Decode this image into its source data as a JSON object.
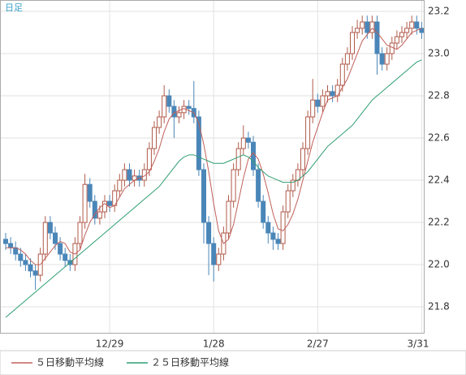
{
  "chart_data": {
    "type": "candlestick",
    "period_label": "日足",
    "categories": [
      null,
      null,
      null,
      null,
      null,
      null,
      null,
      null,
      null,
      null,
      null,
      null,
      null,
      null,
      null,
      null,
      null,
      null,
      null,
      null,
      null,
      "12/29",
      null,
      null,
      null,
      null,
      null,
      null,
      null,
      null,
      null,
      null,
      null,
      null,
      null,
      null,
      null,
      null,
      null,
      null,
      null,
      null,
      "1/28",
      null,
      null,
      null,
      null,
      null,
      null,
      null,
      null,
      null,
      null,
      null,
      null,
      null,
      null,
      null,
      null,
      null,
      null,
      null,
      null,
      "2/27",
      null,
      null,
      null,
      null,
      null,
      null,
      null,
      null,
      null,
      null,
      null,
      null,
      null,
      null,
      null,
      null,
      null,
      null,
      null,
      null,
      "3/31"
    ],
    "ohlc": {
      "up_color": "#b05a4a",
      "down_color": "#4a86b8",
      "open": [
        22.12,
        22.1,
        22.08,
        22.05,
        22.02,
        22.0,
        21.97,
        21.95,
        22.05,
        22.2,
        22.15,
        22.1,
        22.05,
        22.02,
        22.0,
        22.1,
        22.2,
        22.38,
        22.3,
        22.22,
        22.25,
        22.3,
        22.28,
        22.35,
        22.4,
        22.45,
        22.4,
        22.42,
        22.4,
        22.45,
        22.55,
        22.65,
        22.7,
        22.8,
        22.75,
        22.7,
        22.72,
        22.75,
        22.74,
        22.7,
        22.45,
        22.2,
        22.1,
        22.0,
        22.05,
        22.15,
        22.3,
        22.45,
        22.55,
        22.6,
        22.58,
        22.45,
        22.3,
        22.2,
        22.15,
        22.12,
        22.1,
        22.25,
        22.35,
        22.4,
        22.45,
        22.55,
        22.7,
        22.78,
        22.75,
        22.8,
        22.82,
        22.8,
        22.85,
        22.95,
        23.0,
        23.1,
        23.12,
        23.15,
        23.1,
        23.15,
        23.0,
        22.95,
        23.0,
        23.05,
        23.08,
        23.1,
        23.12,
        23.15,
        23.12
      ],
      "high": [
        22.15,
        22.13,
        22.11,
        22.08,
        22.05,
        22.03,
        22.0,
        22.08,
        22.23,
        22.23,
        22.18,
        22.13,
        22.08,
        22.05,
        22.13,
        22.23,
        22.43,
        22.41,
        22.33,
        22.28,
        22.33,
        22.33,
        22.38,
        22.43,
        22.48,
        22.48,
        22.45,
        22.45,
        22.48,
        22.58,
        22.68,
        22.73,
        22.85,
        22.83,
        22.78,
        22.75,
        22.78,
        22.78,
        22.87,
        22.73,
        22.48,
        22.23,
        22.13,
        22.08,
        22.18,
        22.33,
        22.48,
        22.58,
        22.66,
        22.63,
        22.61,
        22.48,
        22.33,
        22.23,
        22.18,
        22.15,
        22.28,
        22.38,
        22.43,
        22.48,
        22.58,
        22.73,
        22.88,
        22.81,
        22.83,
        22.85,
        22.85,
        22.88,
        22.98,
        23.03,
        23.13,
        23.16,
        23.18,
        23.18,
        23.18,
        23.18,
        23.03,
        23.03,
        23.08,
        23.11,
        23.13,
        23.15,
        23.18,
        23.18,
        23.15
      ],
      "low": [
        22.07,
        22.05,
        22.02,
        21.99,
        21.97,
        21.94,
        21.88,
        21.92,
        22.02,
        22.12,
        22.07,
        22.02,
        21.99,
        21.97,
        21.97,
        22.07,
        22.17,
        22.27,
        22.19,
        22.19,
        22.22,
        22.25,
        22.25,
        22.32,
        22.37,
        22.37,
        22.37,
        22.37,
        22.37,
        22.42,
        22.52,
        22.62,
        22.67,
        22.72,
        22.6,
        22.67,
        22.69,
        22.71,
        22.67,
        22.42,
        22.1,
        21.95,
        21.92,
        21.97,
        22.02,
        22.12,
        22.27,
        22.42,
        22.52,
        22.55,
        22.42,
        22.27,
        22.17,
        22.1,
        22.07,
        22.07,
        22.07,
        22.22,
        22.32,
        22.37,
        22.42,
        22.52,
        22.67,
        22.72,
        22.72,
        22.77,
        22.77,
        22.77,
        22.82,
        22.92,
        22.97,
        23.07,
        23.09,
        23.07,
        23.07,
        22.9,
        22.92,
        22.92,
        22.97,
        23.02,
        23.05,
        23.07,
        23.09,
        23.09,
        23.07
      ],
      "close": [
        22.1,
        22.08,
        22.05,
        22.02,
        22.0,
        21.97,
        21.95,
        22.05,
        22.2,
        22.15,
        22.1,
        22.05,
        22.02,
        22.0,
        22.1,
        22.2,
        22.38,
        22.3,
        22.22,
        22.25,
        22.3,
        22.28,
        22.35,
        22.4,
        22.45,
        22.4,
        22.42,
        22.4,
        22.45,
        22.55,
        22.65,
        22.7,
        22.8,
        22.75,
        22.7,
        22.72,
        22.75,
        22.74,
        22.7,
        22.45,
        22.2,
        22.1,
        22.0,
        22.05,
        22.15,
        22.3,
        22.45,
        22.55,
        22.6,
        22.58,
        22.45,
        22.3,
        22.2,
        22.15,
        22.12,
        22.1,
        22.25,
        22.35,
        22.4,
        22.45,
        22.55,
        22.7,
        22.78,
        22.75,
        22.8,
        22.82,
        22.8,
        22.85,
        22.95,
        23.0,
        23.1,
        23.12,
        23.15,
        23.1,
        23.15,
        23.0,
        22.95,
        23.0,
        23.05,
        23.08,
        23.1,
        23.12,
        23.15,
        23.12,
        23.1
      ]
    },
    "series": [
      {
        "name": "５日移動平均線",
        "color": "#c0605a",
        "values": [
          22.08,
          22.08,
          22.08,
          22.07,
          22.05,
          22.02,
          22.0,
          22.0,
          22.03,
          22.06,
          22.09,
          22.11,
          22.1,
          22.06,
          22.05,
          22.07,
          22.14,
          22.2,
          22.24,
          22.27,
          22.29,
          22.27,
          22.28,
          22.32,
          22.36,
          22.38,
          22.4,
          22.41,
          22.42,
          22.44,
          22.49,
          22.55,
          22.63,
          22.69,
          22.72,
          22.73,
          22.74,
          22.73,
          22.72,
          22.67,
          22.57,
          22.44,
          22.29,
          22.16,
          22.1,
          22.12,
          22.19,
          22.3,
          22.41,
          22.5,
          22.53,
          22.5,
          22.43,
          22.34,
          22.24,
          22.17,
          22.16,
          22.19,
          22.24,
          22.31,
          22.4,
          22.49,
          22.58,
          22.65,
          22.72,
          22.78,
          22.79,
          22.8,
          22.84,
          22.88,
          22.94,
          23.0,
          23.06,
          23.09,
          23.12,
          23.1,
          23.07,
          23.04,
          23.03,
          23.02,
          23.04,
          23.07,
          23.1,
          23.11,
          23.12
        ]
      },
      {
        "name": "２５日移動平均線",
        "color": "#2f9e72",
        "values": [
          21.75,
          21.77,
          21.79,
          21.81,
          21.83,
          21.85,
          21.87,
          21.89,
          21.91,
          21.93,
          21.95,
          21.97,
          21.99,
          22.01,
          22.03,
          22.05,
          22.07,
          22.09,
          22.11,
          22.13,
          22.15,
          22.17,
          22.19,
          22.21,
          22.23,
          22.25,
          22.27,
          22.29,
          22.31,
          22.33,
          22.35,
          22.37,
          22.4,
          22.43,
          22.46,
          22.49,
          22.51,
          22.52,
          22.52,
          22.51,
          22.5,
          22.49,
          22.48,
          22.48,
          22.48,
          22.49,
          22.5,
          22.51,
          22.52,
          22.51,
          22.49,
          22.46,
          22.44,
          22.42,
          22.41,
          22.4,
          22.39,
          22.39,
          22.39,
          22.4,
          22.42,
          22.44,
          22.47,
          22.5,
          22.53,
          22.56,
          22.58,
          22.6,
          22.62,
          22.64,
          22.66,
          22.69,
          22.72,
          22.75,
          22.78,
          22.8,
          22.82,
          22.84,
          22.86,
          22.88,
          22.9,
          22.92,
          22.94,
          22.96,
          22.97
        ]
      }
    ],
    "ylim": [
      21.677,
      23.254
    ],
    "yticks": [
      21.8,
      {
        "value": 22,
        "label": "22.0"
      },
      22.2,
      22.4,
      22.6,
      22.8,
      {
        "value": 23,
        "label": "23.0"
      },
      23.2
    ],
    "grid": true
  }
}
